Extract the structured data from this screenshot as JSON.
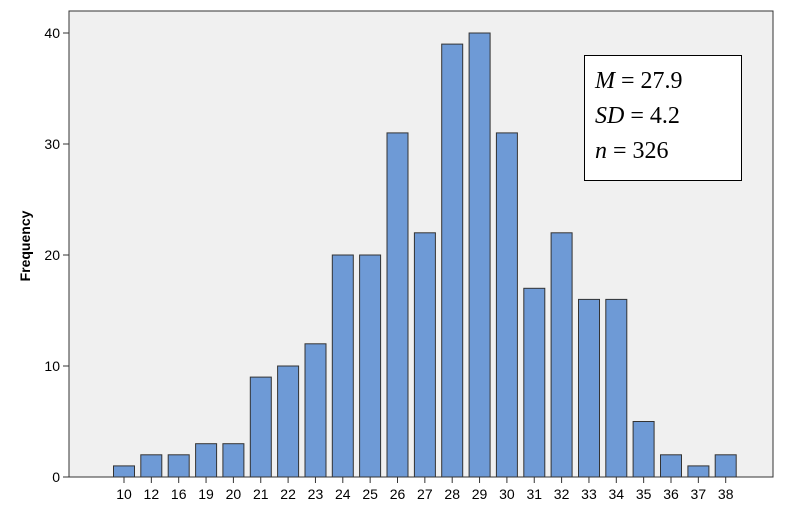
{
  "chart_data": {
    "type": "bar",
    "title": "",
    "xlabel": "",
    "ylabel": "Frequency",
    "ylim": [
      0,
      42
    ],
    "yticks": [
      0,
      10,
      20,
      30,
      40
    ],
    "grid": false,
    "bar_color": "#6e9ad6",
    "bar_edge_color": "#333333",
    "categories": [
      "10",
      "12",
      "16",
      "19",
      "20",
      "21",
      "22",
      "23",
      "24",
      "25",
      "26",
      "27",
      "28",
      "29",
      "30",
      "31",
      "32",
      "33",
      "34",
      "35",
      "36",
      "37",
      "38"
    ],
    "values": [
      1,
      2,
      2,
      3,
      3,
      9,
      10,
      12,
      20,
      20,
      31,
      22,
      39,
      40,
      31,
      17,
      22,
      16,
      16,
      5,
      2,
      1,
      2
    ],
    "annotation": {
      "lines": [
        {
          "symbol": "M",
          "rest": " = 27.9"
        },
        {
          "symbol": "SD",
          "rest": " = 4.2"
        },
        {
          "symbol": "n",
          "rest": " = 326"
        }
      ]
    }
  }
}
